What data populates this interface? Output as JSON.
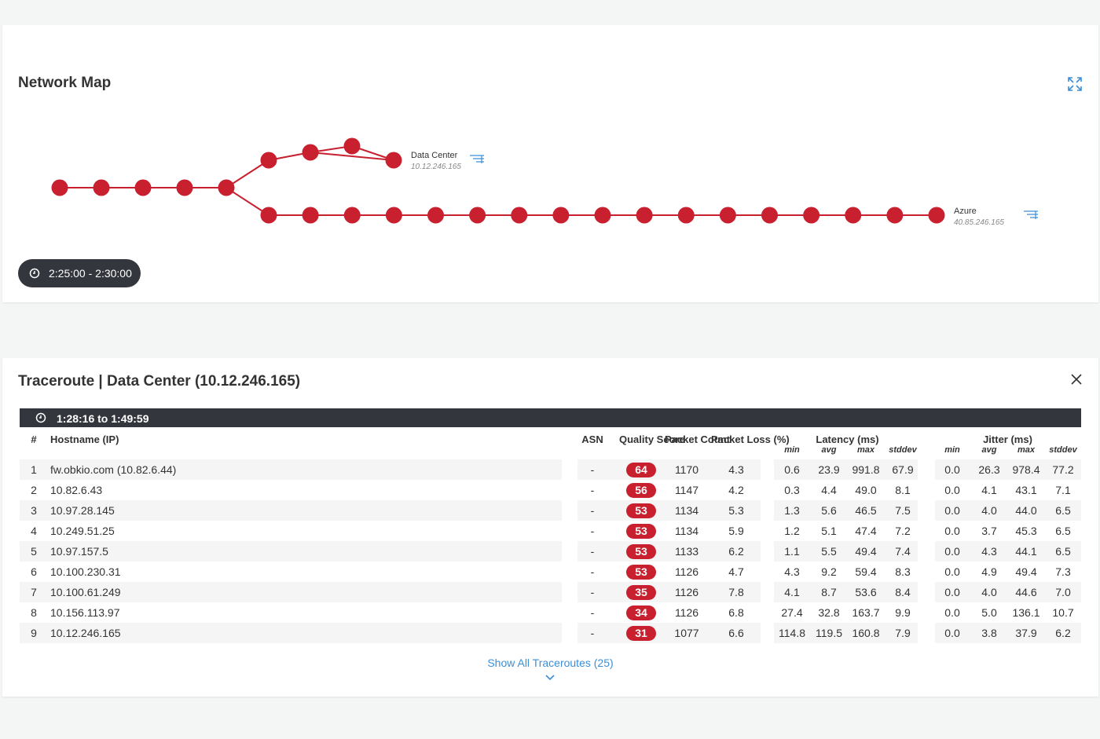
{
  "network_map": {
    "title": "Network Map",
    "time_badge": "2:25:00 - 2:30:00",
    "endpoints": [
      {
        "name": "Data Center",
        "ip": "10.12.246.165"
      },
      {
        "name": "Azure",
        "ip": "40.85.246.165"
      }
    ]
  },
  "traceroute": {
    "title": "Traceroute | Data Center (10.12.246.165)",
    "time_range": "1:28:16 to 1:49:59",
    "columns": [
      "#",
      "Hostname (IP)",
      "ASN",
      "Quality Score",
      "Packet Count",
      "Packet Loss (%)"
    ],
    "latency_header": "Latency (ms)",
    "latency_columns": [
      "min",
      "avg",
      "max",
      "stddev"
    ],
    "jitter_header": "Jitter (ms)",
    "jitter_columns": [
      "min",
      "avg",
      "max",
      "stddev"
    ],
    "rows": [
      [
        "1",
        "fw.obkio.com (10.82.6.44)",
        "-",
        "64",
        "1170",
        "4.3",
        "0.6",
        "23.9",
        "991.8",
        "67.9",
        "0.0",
        "26.3",
        "978.4",
        "77.2"
      ],
      [
        "2",
        "10.82.6.43",
        "-",
        "56",
        "1147",
        "4.2",
        "0.3",
        "4.4",
        "49.0",
        "8.1",
        "0.0",
        "4.1",
        "43.1",
        "7.1"
      ],
      [
        "3",
        "10.97.28.145",
        "-",
        "53",
        "1134",
        "5.3",
        "1.3",
        "5.6",
        "46.5",
        "7.5",
        "0.0",
        "4.0",
        "44.0",
        "6.5"
      ],
      [
        "4",
        "10.249.51.25",
        "-",
        "53",
        "1134",
        "5.9",
        "1.2",
        "5.1",
        "47.4",
        "7.2",
        "0.0",
        "3.7",
        "45.3",
        "6.5"
      ],
      [
        "5",
        "10.97.157.5",
        "-",
        "53",
        "1133",
        "6.2",
        "1.1",
        "5.5",
        "49.4",
        "7.4",
        "0.0",
        "4.3",
        "44.1",
        "6.5"
      ],
      [
        "6",
        "10.100.230.31",
        "-",
        "53",
        "1126",
        "4.7",
        "4.3",
        "9.2",
        "59.4",
        "8.3",
        "0.0",
        "4.9",
        "49.4",
        "7.3"
      ],
      [
        "7",
        "10.100.61.249",
        "-",
        "35",
        "1126",
        "7.8",
        "4.1",
        "8.7",
        "53.6",
        "8.4",
        "0.0",
        "4.0",
        "44.6",
        "7.0"
      ],
      [
        "8",
        "10.156.113.97",
        "-",
        "34",
        "1126",
        "6.8",
        "27.4",
        "32.8",
        "163.7",
        "9.9",
        "0.0",
        "5.0",
        "136.1",
        "10.7"
      ],
      [
        "9",
        "10.12.246.165",
        "-",
        "31",
        "1077",
        "6.6",
        "114.8",
        "119.5",
        "160.8",
        "7.9",
        "0.0",
        "3.8",
        "37.9",
        "6.2"
      ]
    ],
    "show_all": "Show All Traceroutes (25)"
  }
}
